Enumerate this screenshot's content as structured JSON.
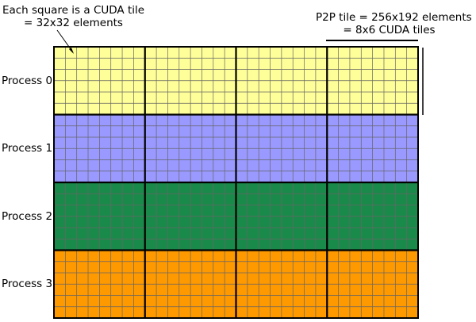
{
  "annotations": {
    "cuda_tile_line1": "Each square is a CUDA tile",
    "cuda_tile_line2": "= 32x32 elements",
    "p2p_tile_line1": "P2P tile = 256x192 elements",
    "p2p_tile_line2": "= 8x6 CUDA tiles"
  },
  "processes": [
    {
      "label": "Process 0",
      "color": "#ffff99"
    },
    {
      "label": "Process 1",
      "color": "#9999ff"
    },
    {
      "label": "Process 2",
      "color": "#1a8a4a"
    },
    {
      "label": "Process 3",
      "color": "#ff9900"
    }
  ],
  "grid": {
    "cuda_tile_columns": 32,
    "cuda_tile_rows_per_process": 6,
    "p2p_tile_columns": 4,
    "cuda_tiles_per_p2p_width": 8,
    "cuda_tiles_per_p2p_height": 6
  },
  "colors": {
    "cuda_grid_line": "#666666",
    "p2p_grid_line": "#000000"
  }
}
